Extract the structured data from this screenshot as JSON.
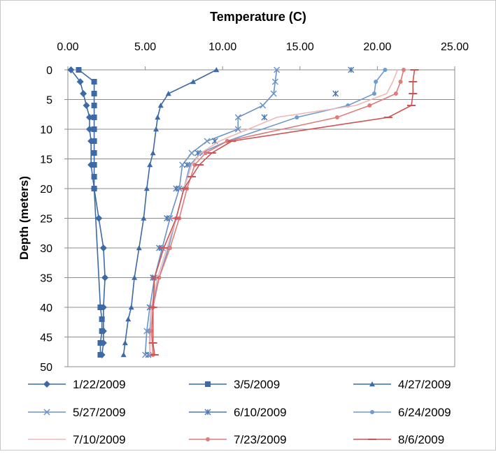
{
  "chart_data": {
    "type": "line",
    "title": "",
    "xlabel": "Temperature (C)",
    "ylabel": "Depth (meters)",
    "xlim": [
      0,
      25
    ],
    "ylim": [
      0,
      50
    ],
    "y_reversed": true,
    "x_axis_position": "top",
    "x_ticks": [
      "0.00",
      "5.00",
      "10.00",
      "15.00",
      "20.00",
      "25.00"
    ],
    "y_ticks": [
      "0",
      "5",
      "10",
      "15",
      "20",
      "25",
      "30",
      "35",
      "40",
      "45",
      "50"
    ],
    "grid": "horizontal",
    "legend_position": "bottom",
    "series": [
      {
        "name": "1/22/2009",
        "color": "#3d6aa6",
        "marker": "diamond",
        "x": [
          0.2,
          0.8,
          1.0,
          1.2,
          1.4,
          1.4,
          1.5,
          1.5,
          1.7,
          2.0,
          2.3,
          2.4,
          2.3,
          2.3,
          2.3,
          2.2
        ],
        "y": [
          0,
          2,
          4,
          6,
          8,
          10,
          12,
          16,
          20,
          25,
          30,
          35,
          40,
          44,
          46,
          48
        ]
      },
      {
        "name": "3/5/2009",
        "color": "#3d6aa6",
        "marker": "square",
        "x": [
          0.7,
          1.7,
          1.7,
          1.7,
          1.7,
          1.7,
          1.7,
          1.7,
          1.7,
          1.7,
          1.7,
          2.1,
          2.2,
          2.2,
          2.1,
          2.1
        ],
        "y": [
          0,
          2,
          4,
          6,
          8,
          10,
          12,
          14,
          16,
          18,
          20,
          40,
          42,
          44,
          46,
          48
        ]
      },
      {
        "name": "4/27/2009",
        "color": "#3d6aa6",
        "marker": "triangle",
        "x": [
          9.6,
          8.1,
          6.5,
          6.0,
          5.8,
          5.7,
          5.5,
          5.3,
          5.1,
          4.9,
          4.6,
          4.3,
          4.1,
          3.9,
          3.7,
          3.6
        ],
        "y": [
          0,
          2,
          4,
          6,
          8,
          10,
          14,
          16,
          20,
          25,
          30,
          35,
          40,
          42,
          46,
          48
        ]
      },
      {
        "name": "5/27/2009",
        "color": "#6a92c8",
        "marker": "x",
        "x": [
          13.5,
          13.4,
          13.3,
          12.6,
          11.0,
          11.0,
          9.0,
          8.0,
          7.4,
          7.2,
          6.6,
          6.1,
          5.6,
          5.3,
          5.1,
          5.0
        ],
        "y": [
          0,
          2,
          4,
          6,
          8,
          10,
          12,
          14,
          16,
          20,
          25,
          30,
          35,
          40,
          44,
          48
        ]
      },
      {
        "name": "6/10/2009",
        "color": "#4a78b5",
        "marker": "asterisk",
        "x": [
          18.3,
          17.3,
          12.7,
          9.5,
          8.4,
          7.7,
          7.0,
          6.4,
          5.9,
          5.5,
          5.3,
          5.2
        ],
        "y": [
          0,
          4,
          8,
          12,
          14,
          16,
          20,
          25,
          30,
          35,
          40,
          48
        ]
      },
      {
        "name": "6/24/2009",
        "color": "#6f9bd1",
        "marker": "circle",
        "x": [
          20.5,
          19.9,
          19.8,
          18.1,
          14.8,
          10.3,
          8.6,
          7.9,
          7.5,
          7.0,
          6.5,
          5.9,
          5.4,
          5.3,
          5.3
        ],
        "y": [
          0,
          2,
          4,
          6,
          8,
          12,
          14,
          16,
          20,
          25,
          30,
          35,
          40,
          44,
          48
        ]
      },
      {
        "name": "7/10/2009",
        "color": "#f0b7b7",
        "marker": "none",
        "x": [
          21.3,
          21.0,
          20.6,
          18.6,
          13.5,
          9.8,
          8.6,
          8.0,
          7.5,
          7.0,
          6.4,
          5.8,
          5.4,
          5.3
        ],
        "y": [
          0,
          2,
          4,
          6,
          8,
          12,
          14,
          16,
          20,
          25,
          30,
          35,
          40,
          48
        ]
      },
      {
        "name": "7/23/2009",
        "color": "#e07b7b",
        "marker": "circle",
        "x": [
          21.7,
          21.5,
          21.2,
          19.5,
          17.4,
          10.3,
          8.9,
          8.2,
          7.7,
          7.2,
          6.6,
          5.9,
          5.5,
          5.4,
          5.5
        ],
        "y": [
          0,
          2,
          4,
          6,
          8,
          12,
          14,
          16,
          20,
          25,
          30,
          35,
          40,
          44,
          48
        ]
      },
      {
        "name": "8/6/2009",
        "color": "#d05252",
        "marker": "dash",
        "x": [
          22.4,
          22.3,
          22.3,
          22.2,
          20.7,
          10.6,
          9.3,
          8.5,
          8.0,
          7.5,
          7.0,
          6.2,
          5.6,
          5.5,
          5.5,
          5.6
        ],
        "y": [
          0,
          2,
          4,
          6,
          8,
          12,
          14,
          16,
          18,
          20,
          25,
          30,
          35,
          40,
          46,
          48
        ]
      }
    ]
  }
}
